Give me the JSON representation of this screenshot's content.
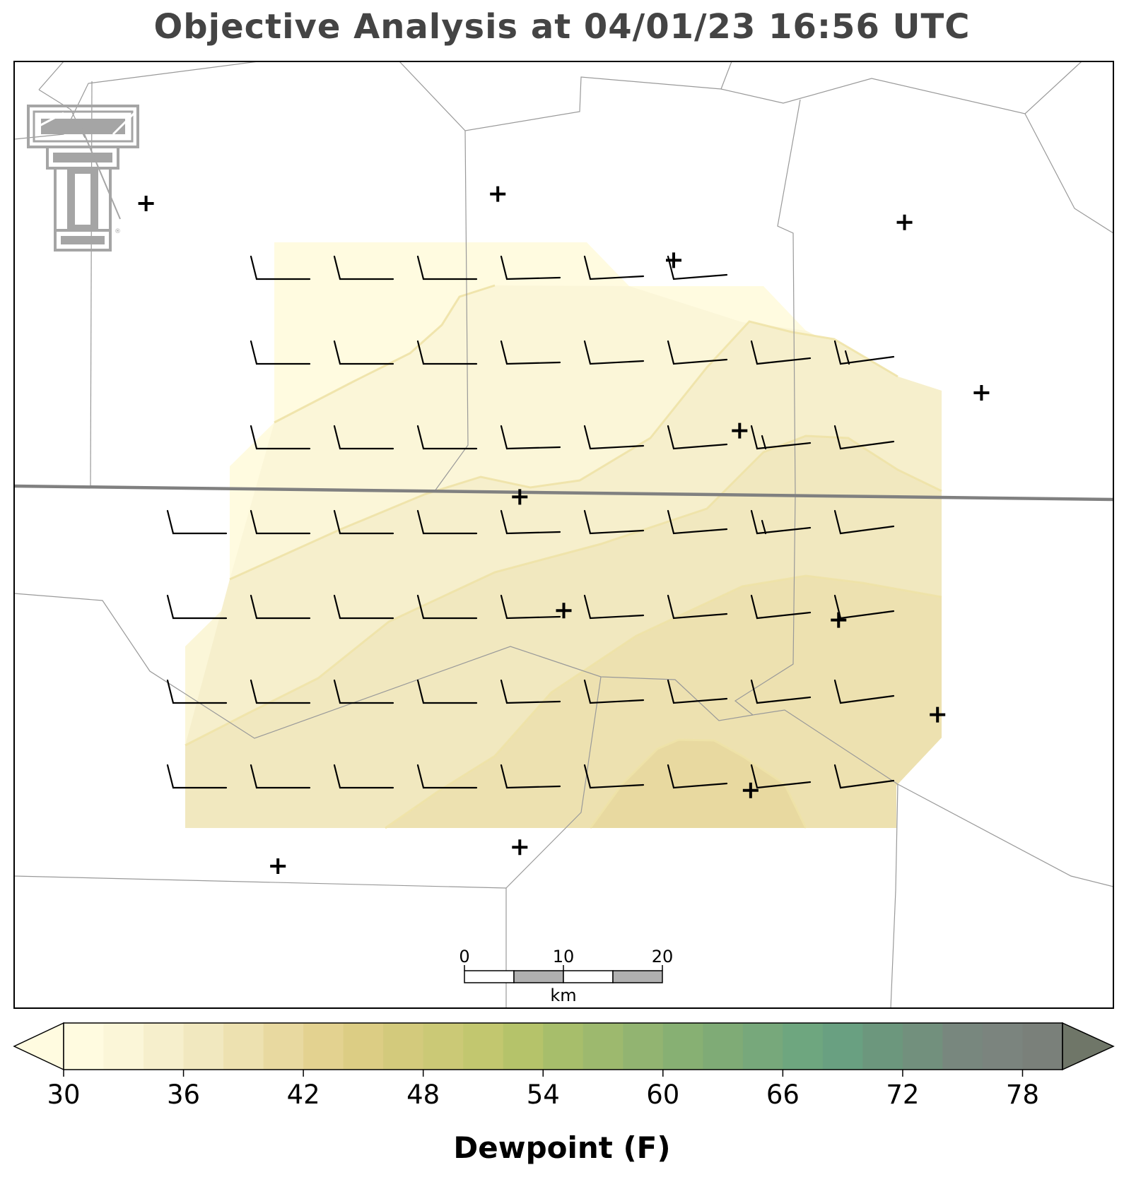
{
  "title": "Objective Analysis at 04/01/23 16:56 UTC",
  "colorbar": {
    "label": "Dewpoint (F)",
    "ticks": [
      30,
      36,
      42,
      48,
      54,
      60,
      66,
      72,
      78
    ],
    "min": 30,
    "max": 80,
    "step": 2,
    "colors": [
      "#fffbe0",
      "#fbf6d8",
      "#f6efcc",
      "#f1e8bf",
      "#ede1b0",
      "#e8d9a0",
      "#e3d290",
      "#dccd84",
      "#d3ca7c",
      "#cbc976",
      "#c2c76f",
      "#b5c36a",
      "#a7be6b",
      "#9db96e",
      "#92b471",
      "#87b073",
      "#7fab76",
      "#77a87b",
      "#6ea67f",
      "#69a081",
      "#6c977d",
      "#72907d",
      "#78877e",
      "#7b847e",
      "#7a807a"
    ],
    "over_color": "#6f7668"
  },
  "scale_bar": {
    "labels": [
      "0",
      "10",
      "20"
    ],
    "unit": "km"
  },
  "logo": {
    "name": "texas-tech-double-t-logo",
    "mark": "®"
  },
  "field": {
    "levels": [
      30,
      32,
      34,
      36,
      38,
      40
    ]
  },
  "stations": [
    {
      "lon": 0.24,
      "lat": 0.85
    },
    {
      "lon": 0.46,
      "lat": 0.83
    },
    {
      "lon": 0.67,
      "lat": 0.77
    },
    {
      "lon": 0.84,
      "lat": 0.69
    },
    {
      "lon": 0.5,
      "lat": 0.58
    },
    {
      "lon": 0.75,
      "lat": 0.59
    },
    {
      "lon": 0.46,
      "lat": 0.46
    },
    {
      "lon": 0.66,
      "lat": 0.39
    },
    {
      "lon": 0.88,
      "lat": 0.35
    },
    {
      "lon": 0.6,
      "lat": 0.21
    },
    {
      "lon": 0.81,
      "lat": 0.17
    },
    {
      "lon": 0.12,
      "lat": 0.15
    },
    {
      "lon": 0.44,
      "lat": 0.14
    }
  ],
  "wind_barbs": {
    "rows": 7,
    "cols": 9,
    "note_values_in_knots": true,
    "grid": [
      [
        null,
        10,
        10,
        10,
        10,
        10,
        10,
        null,
        null
      ],
      [
        null,
        10,
        10,
        10,
        10,
        10,
        10,
        10,
        15
      ],
      [
        null,
        10,
        10,
        10,
        5,
        5,
        5,
        15,
        10
      ],
      [
        10,
        10,
        10,
        10,
        5,
        5,
        5,
        15,
        10
      ],
      [
        10,
        10,
        10,
        10,
        10,
        5,
        5,
        10,
        10
      ],
      [
        10,
        10,
        10,
        10,
        10,
        10,
        10,
        10,
        10
      ],
      [
        10,
        10,
        10,
        10,
        10,
        10,
        10,
        10,
        10
      ]
    ]
  }
}
